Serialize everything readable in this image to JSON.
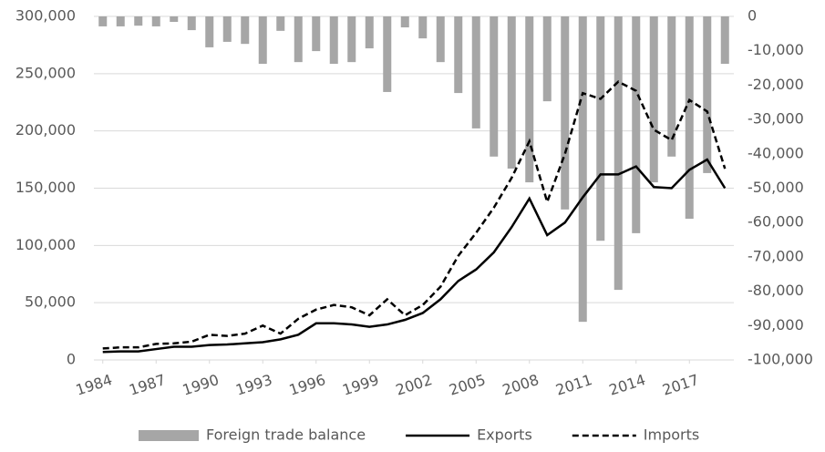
{
  "chart_data": {
    "type": "bar-line",
    "x": [
      1984,
      1985,
      1986,
      1987,
      1988,
      1989,
      1990,
      1991,
      1992,
      1993,
      1994,
      1995,
      1996,
      1997,
      1998,
      1999,
      2000,
      2001,
      2002,
      2003,
      2004,
      2005,
      2006,
      2007,
      2008,
      2009,
      2010,
      2011,
      2012,
      2013,
      2014,
      2015,
      2016,
      2017,
      2018,
      2019
    ],
    "xlim": [
      1983.5,
      2019.5
    ],
    "xticks": [
      1984,
      1987,
      1990,
      1993,
      1996,
      1999,
      2002,
      2005,
      2008,
      2011,
      2014,
      2017
    ],
    "ylim": [
      0,
      300000
    ],
    "yticks": [
      0,
      {
        "value": 50000,
        "label": "50,000"
      },
      {
        "value": 100000,
        "label": "100,000"
      },
      {
        "value": 150000,
        "label": "150,000"
      },
      {
        "value": 200000,
        "label": "200,000"
      },
      {
        "value": 250000,
        "label": "250,000"
      },
      {
        "value": 300000,
        "label": "300,000"
      }
    ],
    "y2lim": [
      -100000,
      0
    ],
    "y2ticks": [
      0,
      {
        "value": -10000,
        "label": "-10,000"
      },
      {
        "value": -20000,
        "label": "-20,000"
      },
      {
        "value": -30000,
        "label": "-30,000"
      },
      {
        "value": -40000,
        "label": "-40,000"
      },
      {
        "value": -50000,
        "label": "-50,000"
      },
      {
        "value": -60000,
        "label": "-60,000"
      },
      {
        "value": -70000,
        "label": "-70,000"
      },
      {
        "value": -80000,
        "label": "-80,000"
      },
      {
        "value": -90000,
        "label": "-90,000"
      },
      {
        "value": -100000,
        "label": "-100,000"
      }
    ],
    "grid": true,
    "legend": "bottom",
    "series": [
      {
        "name": "Foreign trade balance",
        "type": "bar",
        "axis": "y2",
        "color": "#a6a6a6",
        "values": [
          -2900,
          -2900,
          -2700,
          -2900,
          -1600,
          -4000,
          -9000,
          -7400,
          -8000,
          -13800,
          -4200,
          -13300,
          -10100,
          -13800,
          -13300,
          -9300,
          -22000,
          -3200,
          -6400,
          -13300,
          -22300,
          -32600,
          -40800,
          -44300,
          -48300,
          -24700,
          -56200,
          -88900,
          -65300,
          -79600,
          -63100,
          -48300,
          -40800,
          -58900,
          -45600,
          -13800
        ]
      },
      {
        "name": "Exports",
        "type": "line",
        "dash": "solid",
        "color": "#000000",
        "values": [
          7000,
          7500,
          7500,
          9500,
          11500,
          11500,
          13000,
          13500,
          14500,
          15500,
          18000,
          22000,
          32000,
          32000,
          31000,
          29000,
          31000,
          35000,
          41000,
          53000,
          69000,
          79000,
          94000,
          116000,
          141000,
          109000,
          120000,
          142000,
          162000,
          162000,
          169000,
          151000,
          150000,
          166000,
          175000,
          150000
        ]
      },
      {
        "name": "Imports",
        "type": "line",
        "dash": "dashed",
        "color": "#000000",
        "values": [
          10000,
          11000,
          11000,
          14000,
          14500,
          16000,
          22000,
          21000,
          23000,
          30000,
          23000,
          36000,
          44000,
          48000,
          46000,
          39000,
          53000,
          39000,
          48000,
          64000,
          91000,
          111000,
          133000,
          159000,
          191000,
          138000,
          180000,
          233000,
          228000,
          243000,
          235000,
          201000,
          192000,
          227000,
          217000,
          167000
        ]
      }
    ]
  }
}
